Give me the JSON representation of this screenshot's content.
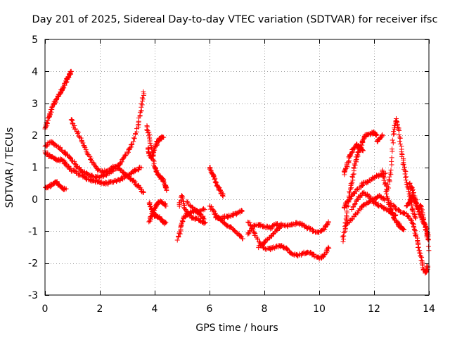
{
  "chart_data": {
    "type": "scatter",
    "title": "Day 201 of 2025, Sidereal Day-to-day VTEC variation (SDTVAR) for receiver ifsc",
    "xlabel": "GPS time / hours",
    "ylabel": "SDTVAR / TECUs",
    "xlim": [
      0,
      14
    ],
    "ylim": [
      -3,
      5
    ],
    "xticks": [
      0,
      2,
      4,
      6,
      8,
      10,
      12,
      14
    ],
    "yticks": [
      -3,
      -2,
      -1,
      0,
      1,
      2,
      3,
      4,
      5
    ],
    "grid": true,
    "marker": "plus",
    "color": "#ff0000",
    "series": [
      {
        "name": "track-1",
        "points": [
          [
            0.0,
            2.2
          ],
          [
            0.1,
            2.45
          ],
          [
            0.2,
            2.7
          ],
          [
            0.3,
            2.95
          ],
          [
            0.4,
            3.1
          ],
          [
            0.5,
            3.25
          ],
          [
            0.6,
            3.4
          ],
          [
            0.7,
            3.55
          ],
          [
            0.8,
            3.75
          ],
          [
            0.9,
            3.9
          ],
          [
            0.95,
            4.0
          ]
        ]
      },
      {
        "name": "track-2",
        "points": [
          [
            0.0,
            1.5
          ],
          [
            0.15,
            1.35
          ],
          [
            0.3,
            1.3
          ],
          [
            0.45,
            1.2
          ],
          [
            0.6,
            1.25
          ],
          [
            0.75,
            1.1
          ],
          [
            0.9,
            0.95
          ],
          [
            1.1,
            0.85
          ],
          [
            1.3,
            0.75
          ],
          [
            1.5,
            0.65
          ],
          [
            1.7,
            0.6
          ],
          [
            1.9,
            0.55
          ],
          [
            2.1,
            0.5
          ],
          [
            2.3,
            0.5
          ],
          [
            2.5,
            0.55
          ],
          [
            2.7,
            0.6
          ],
          [
            2.9,
            0.7
          ],
          [
            3.1,
            0.8
          ],
          [
            3.3,
            0.9
          ],
          [
            3.5,
            1.0
          ]
        ]
      },
      {
        "name": "track-3",
        "points": [
          [
            0.0,
            1.65
          ],
          [
            0.2,
            1.8
          ],
          [
            0.4,
            1.7
          ],
          [
            0.6,
            1.55
          ],
          [
            0.8,
            1.4
          ],
          [
            1.0,
            1.2
          ],
          [
            1.2,
            1.0
          ],
          [
            1.4,
            0.85
          ],
          [
            1.6,
            0.75
          ],
          [
            1.8,
            0.7
          ],
          [
            2.0,
            0.7
          ],
          [
            2.2,
            0.75
          ],
          [
            2.4,
            0.85
          ],
          [
            2.6,
            1.0
          ],
          [
            2.8,
            1.2
          ],
          [
            3.0,
            1.45
          ],
          [
            3.2,
            1.75
          ],
          [
            3.4,
            2.3
          ],
          [
            3.5,
            2.8
          ],
          [
            3.6,
            3.35
          ]
        ]
      },
      {
        "name": "track-4",
        "points": [
          [
            0.0,
            0.35
          ],
          [
            0.15,
            0.4
          ],
          [
            0.3,
            0.5
          ],
          [
            0.4,
            0.55
          ],
          [
            0.5,
            0.45
          ],
          [
            0.6,
            0.35
          ],
          [
            0.75,
            0.3
          ]
        ]
      },
      {
        "name": "track-5",
        "points": [
          [
            0.95,
            2.5
          ],
          [
            1.1,
            2.2
          ],
          [
            1.3,
            1.9
          ],
          [
            1.5,
            1.55
          ],
          [
            1.7,
            1.2
          ],
          [
            1.9,
            0.95
          ],
          [
            2.1,
            0.85
          ],
          [
            2.3,
            0.9
          ],
          [
            2.5,
            1.0
          ],
          [
            2.7,
            0.95
          ],
          [
            2.9,
            0.8
          ],
          [
            3.1,
            0.65
          ],
          [
            3.3,
            0.5
          ],
          [
            3.5,
            0.3
          ],
          [
            3.6,
            0.2
          ]
        ]
      },
      {
        "name": "track-6",
        "points": [
          [
            3.7,
            2.3
          ],
          [
            3.8,
            2.0
          ],
          [
            3.9,
            1.5
          ],
          [
            4.0,
            1.0
          ],
          [
            4.1,
            0.8
          ],
          [
            4.2,
            0.7
          ],
          [
            4.3,
            0.6
          ],
          [
            4.4,
            0.4
          ],
          [
            4.45,
            0.3
          ]
        ]
      },
      {
        "name": "track-7",
        "points": [
          [
            3.75,
            1.6
          ],
          [
            3.8,
            1.4
          ],
          [
            3.9,
            1.3
          ],
          [
            4.0,
            1.6
          ],
          [
            4.1,
            1.8
          ],
          [
            4.2,
            1.9
          ],
          [
            4.3,
            1.95
          ]
        ]
      },
      {
        "name": "track-8",
        "points": [
          [
            3.8,
            -0.1
          ],
          [
            3.9,
            -0.35
          ],
          [
            4.0,
            -0.5
          ],
          [
            4.1,
            -0.55
          ],
          [
            4.2,
            -0.6
          ],
          [
            4.3,
            -0.7
          ],
          [
            4.4,
            -0.75
          ]
        ]
      },
      {
        "name": "track-9",
        "points": [
          [
            3.8,
            -0.7
          ],
          [
            3.9,
            -0.5
          ],
          [
            4.0,
            -0.3
          ],
          [
            4.1,
            -0.15
          ],
          [
            4.2,
            -0.05
          ],
          [
            4.3,
            -0.1
          ],
          [
            4.4,
            -0.2
          ]
        ]
      },
      {
        "name": "track-10",
        "points": [
          [
            4.85,
            -1.25
          ],
          [
            4.95,
            -0.9
          ],
          [
            5.05,
            -0.6
          ],
          [
            5.2,
            -0.45
          ],
          [
            5.35,
            -0.4
          ],
          [
            5.5,
            -0.35
          ],
          [
            5.65,
            -0.45
          ],
          [
            5.8,
            -0.6
          ]
        ]
      },
      {
        "name": "track-11",
        "points": [
          [
            4.9,
            -0.2
          ],
          [
            5.0,
            0.1
          ],
          [
            5.1,
            -0.3
          ],
          [
            5.3,
            -0.55
          ],
          [
            5.5,
            -0.6
          ],
          [
            5.7,
            -0.7
          ],
          [
            5.85,
            -0.75
          ]
        ]
      },
      {
        "name": "track-12",
        "points": [
          [
            5.2,
            -0.1
          ],
          [
            5.4,
            -0.3
          ],
          [
            5.6,
            -0.4
          ],
          [
            5.8,
            -0.3
          ]
        ]
      },
      {
        "name": "track-13",
        "points": [
          [
            6.0,
            1.0
          ],
          [
            6.1,
            0.8
          ],
          [
            6.2,
            0.6
          ],
          [
            6.3,
            0.4
          ],
          [
            6.4,
            0.25
          ],
          [
            6.5,
            0.1
          ]
        ]
      },
      {
        "name": "track-14",
        "points": [
          [
            6.0,
            -0.2
          ],
          [
            6.2,
            -0.45
          ],
          [
            6.4,
            -0.65
          ],
          [
            6.6,
            -0.8
          ],
          [
            6.8,
            -0.9
          ],
          [
            7.0,
            -1.05
          ],
          [
            7.2,
            -1.25
          ]
        ]
      },
      {
        "name": "track-15",
        "points": [
          [
            6.2,
            -0.55
          ],
          [
            6.4,
            -0.6
          ],
          [
            6.6,
            -0.55
          ],
          [
            6.8,
            -0.5
          ],
          [
            7.0,
            -0.45
          ],
          [
            7.2,
            -0.35
          ]
        ]
      },
      {
        "name": "track-16",
        "points": [
          [
            7.4,
            -0.7
          ],
          [
            7.6,
            -1.0
          ],
          [
            7.8,
            -1.35
          ],
          [
            8.0,
            -1.55
          ],
          [
            8.2,
            -1.55
          ],
          [
            8.4,
            -1.5
          ],
          [
            8.6,
            -1.45
          ],
          [
            8.8,
            -1.55
          ],
          [
            9.0,
            -1.7
          ],
          [
            9.2,
            -1.75
          ],
          [
            9.4,
            -1.7
          ],
          [
            9.6,
            -1.65
          ],
          [
            9.8,
            -1.75
          ],
          [
            10.0,
            -1.85
          ],
          [
            10.2,
            -1.75
          ],
          [
            10.35,
            -1.5
          ]
        ]
      },
      {
        "name": "track-17",
        "points": [
          [
            7.4,
            -1.1
          ],
          [
            7.6,
            -0.85
          ],
          [
            7.8,
            -0.8
          ],
          [
            8.0,
            -0.85
          ],
          [
            8.2,
            -0.9
          ],
          [
            8.4,
            -0.8
          ],
          [
            8.6,
            -0.8
          ],
          [
            8.8,
            -0.85
          ],
          [
            9.0,
            -0.8
          ],
          [
            9.2,
            -0.75
          ],
          [
            9.4,
            -0.8
          ],
          [
            9.6,
            -0.9
          ],
          [
            9.8,
            -1.0
          ],
          [
            10.0,
            -1.05
          ],
          [
            10.2,
            -0.9
          ],
          [
            10.35,
            -0.7
          ]
        ]
      },
      {
        "name": "track-18",
        "points": [
          [
            7.8,
            -1.5
          ],
          [
            8.0,
            -1.35
          ],
          [
            8.2,
            -1.2
          ],
          [
            8.4,
            -1.0
          ],
          [
            8.6,
            -0.85
          ]
        ]
      },
      {
        "name": "track-19",
        "points": [
          [
            10.85,
            -1.3
          ],
          [
            10.95,
            -0.9
          ],
          [
            11.0,
            -0.5
          ],
          [
            11.1,
            0.2
          ],
          [
            11.2,
            0.6
          ],
          [
            11.3,
            1.1
          ],
          [
            11.4,
            1.4
          ],
          [
            11.5,
            1.6
          ],
          [
            11.6,
            1.85
          ],
          [
            11.7,
            2.0
          ],
          [
            11.9,
            2.05
          ],
          [
            12.0,
            2.1
          ],
          [
            12.1,
            2.0
          ]
        ]
      },
      {
        "name": "track-20",
        "points": [
          [
            10.9,
            0.8
          ],
          [
            11.0,
            1.0
          ],
          [
            11.1,
            1.3
          ],
          [
            11.2,
            1.5
          ],
          [
            11.35,
            1.7
          ],
          [
            11.5,
            1.6
          ],
          [
            11.6,
            1.5
          ]
        ]
      },
      {
        "name": "track-21",
        "points": [
          [
            10.9,
            -0.3
          ],
          [
            11.0,
            -0.1
          ],
          [
            11.2,
            0.1
          ],
          [
            11.4,
            0.3
          ],
          [
            11.6,
            0.5
          ],
          [
            11.8,
            0.55
          ],
          [
            12.0,
            0.7
          ],
          [
            12.2,
            0.75
          ],
          [
            12.4,
            0.8
          ]
        ]
      },
      {
        "name": "track-22",
        "points": [
          [
            11.0,
            -0.8
          ],
          [
            11.2,
            -0.6
          ],
          [
            11.4,
            -0.4
          ],
          [
            11.6,
            -0.2
          ],
          [
            11.8,
            -0.1
          ],
          [
            12.0,
            0.0
          ],
          [
            12.2,
            0.1
          ],
          [
            12.4,
            0.0
          ]
        ]
      },
      {
        "name": "track-23",
        "points": [
          [
            11.2,
            -0.3
          ],
          [
            11.4,
            0.0
          ],
          [
            11.6,
            0.2
          ],
          [
            11.8,
            0.1
          ],
          [
            12.0,
            -0.1
          ],
          [
            12.2,
            -0.2
          ],
          [
            12.4,
            -0.3
          ],
          [
            12.6,
            -0.4
          ],
          [
            12.8,
            -0.5
          ]
        ]
      },
      {
        "name": "track-24",
        "points": [
          [
            12.1,
            1.8
          ],
          [
            12.2,
            1.9
          ],
          [
            12.3,
            2.0
          ]
        ]
      },
      {
        "name": "track-25",
        "points": [
          [
            12.5,
            0.3
          ],
          [
            12.6,
            0.8
          ],
          [
            12.7,
            2.0
          ],
          [
            12.8,
            2.5
          ],
          [
            12.9,
            2.2
          ],
          [
            13.0,
            1.5
          ],
          [
            13.1,
            1.0
          ],
          [
            13.2,
            0.5
          ],
          [
            13.3,
            0.1
          ],
          [
            13.4,
            -0.3
          ],
          [
            13.5,
            -0.6
          ]
        ]
      },
      {
        "name": "track-26",
        "points": [
          [
            12.3,
            0.9
          ],
          [
            12.4,
            0.5
          ],
          [
            12.5,
            0.0
          ],
          [
            12.6,
            -0.3
          ],
          [
            12.7,
            -0.5
          ],
          [
            12.8,
            -0.7
          ],
          [
            12.9,
            -0.8
          ],
          [
            13.0,
            -0.9
          ],
          [
            13.1,
            -0.95
          ]
        ]
      },
      {
        "name": "track-27",
        "points": [
          [
            12.6,
            -0.1
          ],
          [
            12.8,
            -0.3
          ],
          [
            13.0,
            -0.4
          ],
          [
            13.2,
            -0.5
          ],
          [
            13.4,
            -0.7
          ],
          [
            13.5,
            -1.0
          ],
          [
            13.6,
            -1.4
          ],
          [
            13.7,
            -1.8
          ],
          [
            13.8,
            -2.2
          ],
          [
            13.9,
            -2.3
          ],
          [
            13.95,
            -2.1
          ]
        ]
      },
      {
        "name": "track-28",
        "points": [
          [
            13.3,
            0.5
          ],
          [
            13.4,
            0.3
          ],
          [
            13.5,
            0.0
          ],
          [
            13.6,
            -0.3
          ],
          [
            13.7,
            -0.5
          ],
          [
            13.8,
            -0.7
          ],
          [
            13.9,
            -0.9
          ],
          [
            14.0,
            -1.2
          ],
          [
            14.0,
            -1.6
          ]
        ]
      },
      {
        "name": "track-29",
        "points": [
          [
            13.2,
            -0.2
          ],
          [
            13.3,
            -0.1
          ],
          [
            13.4,
            0.1
          ],
          [
            13.5,
            -0.1
          ],
          [
            13.6,
            -0.3
          ],
          [
            13.7,
            -0.2
          ],
          [
            13.8,
            -0.6
          ],
          [
            13.9,
            -1.0
          ],
          [
            14.0,
            -1.4
          ]
        ]
      }
    ]
  }
}
